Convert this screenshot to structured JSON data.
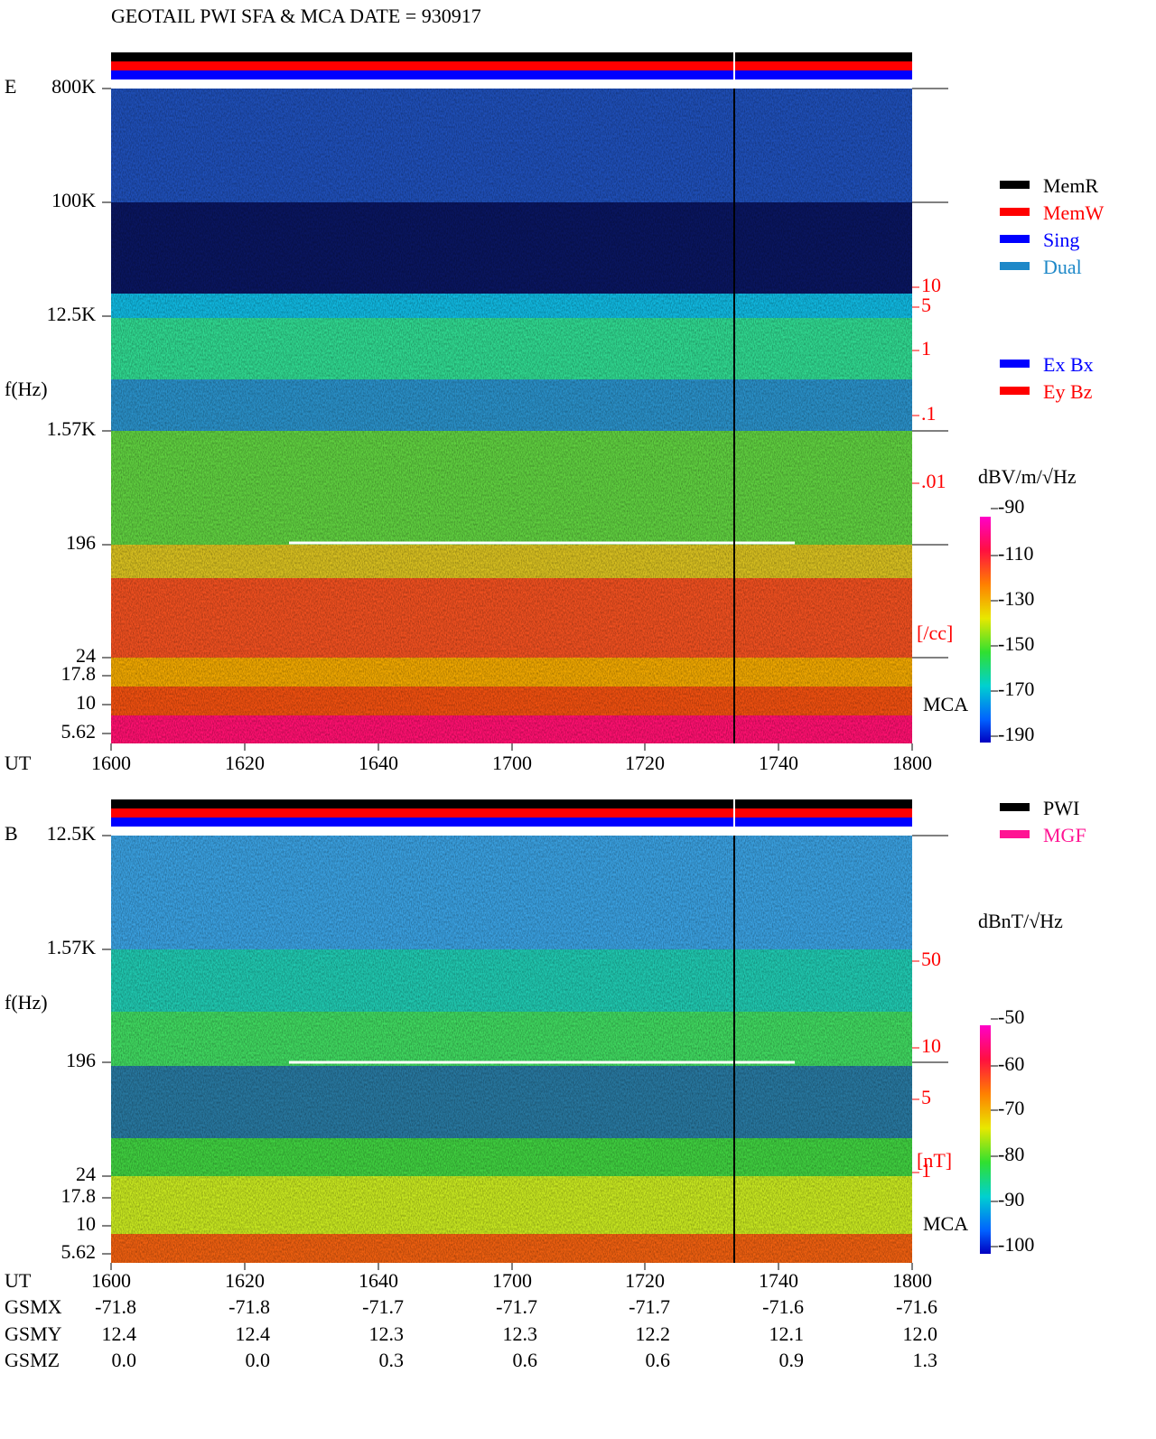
{
  "title": "GEOTAIL  PWI SFA & MCA   DATE = 930917",
  "panels": [
    {
      "label": "E",
      "ylabel": "f(Hz)",
      "xlabel": "UT",
      "yticks": [
        "800K",
        "100K",
        "12.5K",
        "1.57K",
        "196",
        "24",
        "17.8",
        "10",
        "5.62"
      ],
      "xticks": [
        "1600",
        "1620",
        "1640",
        "1700",
        "1720",
        "1740",
        "1800"
      ],
      "right_ticks": [
        "10",
        "5",
        "1",
        ".1",
        ".01"
      ],
      "right_unit": "[/cc]",
      "mca": "MCA",
      "legend": [
        {
          "name": "MemR",
          "color": "#000000"
        },
        {
          "name": "MemW",
          "color": "#ff0000"
        },
        {
          "name": "Sing",
          "color": "#0000ff"
        },
        {
          "name": "Dual",
          "color": "#1e88c8"
        },
        {
          "name": "Ex Bx",
          "color": "#0000ff"
        },
        {
          "name": "Ey Bz",
          "color": "#ff0000"
        }
      ],
      "colorbar": {
        "unit": "dBV/m/√Hz",
        "ticks": [
          "-90",
          "-110",
          "-130",
          "-150",
          "-170",
          "-190"
        ]
      }
    },
    {
      "label": "B",
      "ylabel": "f(Hz)",
      "xlabel": "UT",
      "yticks": [
        "12.5K",
        "1.57K",
        "196",
        "24",
        "17.8",
        "10",
        "5.62"
      ],
      "xticks": [
        "1600",
        "1620",
        "1640",
        "1700",
        "1720",
        "1740",
        "1800"
      ],
      "right_ticks": [
        "50",
        "10",
        "5",
        "1"
      ],
      "right_unit": "[nT]",
      "mca": "MCA",
      "legend": [
        {
          "name": "PWI",
          "color": "#000000"
        },
        {
          "name": "MGF",
          "color": "#ff1493"
        }
      ],
      "colorbar": {
        "unit": "dBnT/√Hz",
        "ticks": [
          "-50",
          "-60",
          "-70",
          "-80",
          "-90",
          "-100"
        ]
      }
    }
  ],
  "orbit": {
    "rows": [
      {
        "name": "GSMX",
        "values": [
          "-71.8",
          "-71.8",
          "-71.7",
          "-71.7",
          "-71.7",
          "-71.6",
          "-71.6"
        ]
      },
      {
        "name": "GSMY",
        "values": [
          "12.4",
          "12.4",
          "12.3",
          "12.3",
          "12.2",
          "12.1",
          "12.0"
        ]
      },
      {
        "name": "GSMZ",
        "values": [
          "0.0",
          "0.0",
          "0.3",
          "0.6",
          "0.6",
          "0.9",
          "1.3"
        ]
      }
    ]
  }
}
